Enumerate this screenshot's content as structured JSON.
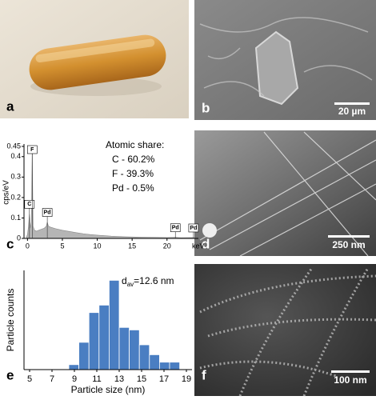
{
  "panel_labels": [
    "a",
    "b",
    "c",
    "d",
    "e",
    "f"
  ],
  "scale_bars": [
    "20 µm",
    "250 nm",
    "100 nm"
  ],
  "chart_data": [
    {
      "type": "area",
      "ylabel": "cps/eV",
      "xlabel": "keV",
      "x": [
        -0.2,
        0,
        0.15,
        0.28,
        0.4,
        0.55,
        0.68,
        0.8,
        1.0,
        1.3,
        1.6,
        2.0,
        2.4,
        2.7,
        2.84,
        3.0,
        3.3,
        4,
        5,
        6,
        7,
        8,
        9,
        10,
        12,
        14,
        16,
        18,
        20,
        21.2,
        22,
        23.8,
        24
      ],
      "values": [
        0,
        0.02,
        0.06,
        0.12,
        0.05,
        0.08,
        0.45,
        0.06,
        0.04,
        0.035,
        0.04,
        0.045,
        0.05,
        0.06,
        0.08,
        0.06,
        0.055,
        0.048,
        0.04,
        0.034,
        0.028,
        0.023,
        0.019,
        0.016,
        0.011,
        0.008,
        0.006,
        0.005,
        0.004,
        0.005,
        0.003,
        0.004,
        0.003
      ],
      "color": "#b5b5b5",
      "xlim": [
        -0.5,
        24.5
      ],
      "xticks": [
        0,
        5,
        10,
        15,
        20
      ],
      "ylim": [
        0,
        0.45
      ],
      "yticks": [
        0,
        0.1,
        0.2,
        0.3,
        0.4,
        0.45
      ],
      "peak_labels": [
        {
          "label": "C",
          "x": 0.28
        },
        {
          "label": "F",
          "x": 0.68
        },
        {
          "label": "Pd",
          "x": 2.84
        },
        {
          "label": "Pd",
          "x": 21.2
        },
        {
          "label": "Pd",
          "x": 23.8
        }
      ],
      "annotations": [
        "Atomic share:",
        "C - 60.2%",
        "F - 39.3%",
        "Pd - 0.5%"
      ]
    },
    {
      "type": "histogram",
      "xlabel": "Particle size (nm)",
      "ylabel": "Particle counts",
      "annotation": {
        "symbol": "d",
        "subscript": "av",
        "text": "=12.6 nm"
      },
      "bins": [
        8.5,
        9.4,
        10.3,
        11.2,
        12.1,
        13,
        13.9,
        14.8,
        15.7,
        16.6,
        17.5,
        18.4
      ],
      "values": [
        2,
        11,
        23,
        26,
        36,
        17,
        16,
        10,
        6,
        3,
        3
      ],
      "color": "#4a7ec2",
      "xlim": [
        4.5,
        19.5
      ],
      "xticks": [
        5,
        7,
        9,
        11,
        13,
        15,
        17,
        19
      ],
      "ylim": [
        0,
        40
      ]
    }
  ]
}
